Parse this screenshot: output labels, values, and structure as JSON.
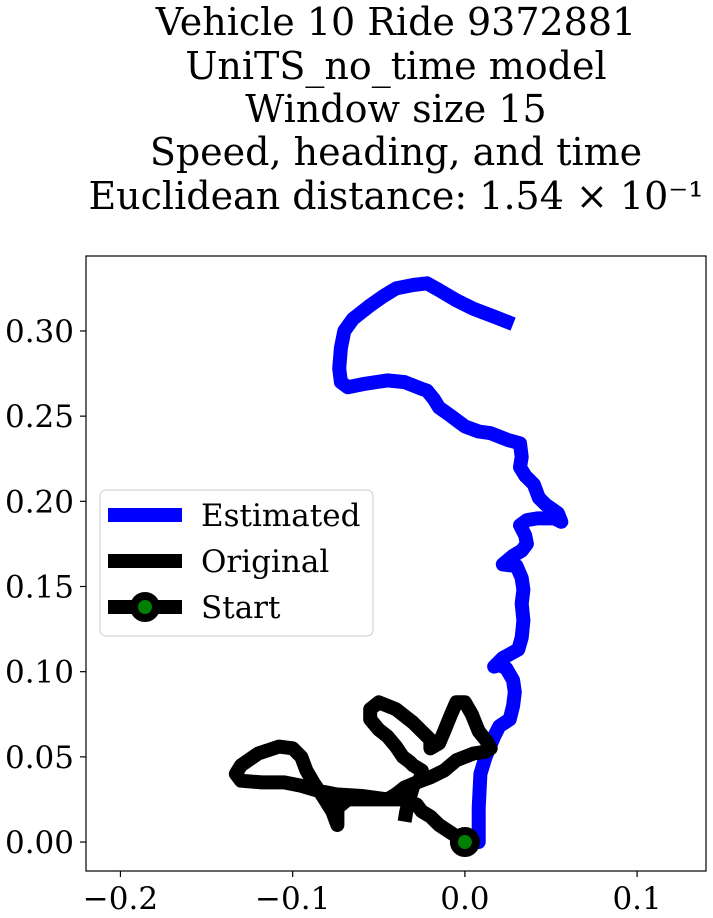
{
  "chart_data": {
    "type": "line",
    "title_lines": [
      "Vehicle 10 Ride 9372881",
      "UniTS_no_time model",
      "Window size 15",
      "Speed, heading, and time",
      "Euclidean distance: 1.54 × 10⁻¹"
    ],
    "xlabel": "",
    "ylabel": "",
    "xlim": [
      -0.22,
      0.14
    ],
    "ylim": [
      -0.017,
      0.344
    ],
    "x_ticks": [
      -0.2,
      -0.1,
      0.0,
      0.1
    ],
    "x_tick_labels": [
      "−0.2",
      "−0.1",
      "0.0",
      "0.1"
    ],
    "y_ticks": [
      0.0,
      0.05,
      0.1,
      0.15,
      0.2,
      0.25,
      0.3
    ],
    "y_tick_labels": [
      "0.00",
      "0.05",
      "0.10",
      "0.15",
      "0.20",
      "0.25",
      "0.30"
    ],
    "grid": false,
    "legend": {
      "placement": "center-left",
      "entries": [
        "Estimated",
        "Original",
        "Start"
      ]
    },
    "colors": {
      "estimated": "#0000ff",
      "original": "#000000",
      "start_fill": "#008000",
      "start_edge": "#000000"
    },
    "series": [
      {
        "name": "Estimated",
        "points": [
          [
            0.0,
            0.0
          ],
          [
            0.008,
            0.0
          ],
          [
            0.008,
            0.02
          ],
          [
            0.009,
            0.04
          ],
          [
            0.012,
            0.05
          ],
          [
            0.017,
            0.062
          ],
          [
            0.02,
            0.068
          ],
          [
            0.026,
            0.072
          ],
          [
            0.028,
            0.08
          ],
          [
            0.029,
            0.088
          ],
          [
            0.028,
            0.095
          ],
          [
            0.024,
            0.102
          ],
          [
            0.02,
            0.104
          ],
          [
            0.017,
            0.103
          ],
          [
            0.022,
            0.108
          ],
          [
            0.031,
            0.113
          ],
          [
            0.033,
            0.12
          ],
          [
            0.034,
            0.13
          ],
          [
            0.033,
            0.14
          ],
          [
            0.034,
            0.148
          ],
          [
            0.033,
            0.155
          ],
          [
            0.03,
            0.162
          ],
          [
            0.022,
            0.163
          ],
          [
            0.028,
            0.168
          ],
          [
            0.033,
            0.171
          ],
          [
            0.036,
            0.175
          ],
          [
            0.035,
            0.18
          ],
          [
            0.032,
            0.186
          ],
          [
            0.036,
            0.189
          ],
          [
            0.042,
            0.19
          ],
          [
            0.048,
            0.19
          ],
          [
            0.052,
            0.19
          ],
          [
            0.056,
            0.188
          ],
          [
            0.054,
            0.193
          ],
          [
            0.047,
            0.198
          ],
          [
            0.043,
            0.202
          ],
          [
            0.04,
            0.21
          ],
          [
            0.035,
            0.215
          ],
          [
            0.032,
            0.22
          ],
          [
            0.033,
            0.226
          ],
          [
            0.032,
            0.234
          ],
          [
            0.025,
            0.236
          ],
          [
            0.015,
            0.24
          ],
          [
            0.008,
            0.241
          ],
          [
            0.0,
            0.244
          ],
          [
            -0.008,
            0.25
          ],
          [
            -0.015,
            0.255
          ],
          [
            -0.018,
            0.26
          ],
          [
            -0.022,
            0.265
          ],
          [
            -0.025,
            0.266
          ],
          [
            -0.03,
            0.268
          ],
          [
            -0.035,
            0.27
          ],
          [
            -0.045,
            0.271
          ],
          [
            -0.058,
            0.269
          ],
          [
            -0.068,
            0.267
          ],
          [
            -0.072,
            0.27
          ],
          [
            -0.073,
            0.278
          ],
          [
            -0.072,
            0.29
          ],
          [
            -0.07,
            0.3
          ],
          [
            -0.065,
            0.307
          ],
          [
            -0.055,
            0.315
          ],
          [
            -0.048,
            0.32
          ],
          [
            -0.04,
            0.325
          ],
          [
            -0.03,
            0.327
          ],
          [
            -0.022,
            0.328
          ],
          [
            -0.015,
            0.324
          ],
          [
            -0.005,
            0.318
          ],
          [
            0.005,
            0.313
          ],
          [
            0.018,
            0.308
          ],
          [
            0.028,
            0.304
          ]
        ]
      },
      {
        "name": "Original",
        "points": [
          [
            0.0,
            0.0
          ],
          [
            -0.006,
            0.004
          ],
          [
            -0.015,
            0.01
          ],
          [
            -0.02,
            0.015
          ],
          [
            -0.025,
            0.018
          ],
          [
            -0.028,
            0.022
          ],
          [
            -0.035,
            0.025
          ],
          [
            -0.045,
            0.025
          ],
          [
            -0.06,
            0.027
          ],
          [
            -0.075,
            0.028
          ],
          [
            -0.085,
            0.03
          ],
          [
            -0.095,
            0.033
          ],
          [
            -0.105,
            0.035
          ],
          [
            -0.118,
            0.035
          ],
          [
            -0.13,
            0.036
          ],
          [
            -0.133,
            0.04
          ],
          [
            -0.13,
            0.045
          ],
          [
            -0.12,
            0.052
          ],
          [
            -0.108,
            0.056
          ],
          [
            -0.1,
            0.055
          ],
          [
            -0.095,
            0.05
          ],
          [
            -0.092,
            0.042
          ],
          [
            -0.088,
            0.035
          ],
          [
            -0.082,
            0.026
          ],
          [
            -0.077,
            0.018
          ],
          [
            -0.074,
            0.01
          ],
          [
            -0.074,
            0.02
          ],
          [
            -0.068,
            0.025
          ],
          [
            -0.055,
            0.025
          ],
          [
            -0.045,
            0.025
          ],
          [
            -0.04,
            0.028
          ],
          [
            -0.035,
            0.032
          ],
          [
            -0.028,
            0.035
          ],
          [
            -0.02,
            0.038
          ],
          [
            -0.012,
            0.042
          ],
          [
            -0.005,
            0.048
          ],
          [
            0.0,
            0.05
          ],
          [
            0.005,
            0.052
          ],
          [
            0.012,
            0.053
          ],
          [
            0.015,
            0.055
          ],
          [
            0.012,
            0.06
          ],
          [
            0.008,
            0.065
          ],
          [
            0.004,
            0.075
          ],
          [
            0.0,
            0.082
          ],
          [
            -0.005,
            0.082
          ],
          [
            -0.008,
            0.075
          ],
          [
            -0.012,
            0.065
          ],
          [
            -0.015,
            0.058
          ],
          [
            -0.02,
            0.055
          ],
          [
            -0.02,
            0.06
          ],
          [
            -0.03,
            0.07
          ],
          [
            -0.04,
            0.078
          ],
          [
            -0.045,
            0.08
          ],
          [
            -0.05,
            0.082
          ],
          [
            -0.055,
            0.078
          ],
          [
            -0.055,
            0.072
          ],
          [
            -0.05,
            0.066
          ],
          [
            -0.045,
            0.062
          ],
          [
            -0.04,
            0.056
          ],
          [
            -0.036,
            0.05
          ],
          [
            -0.032,
            0.047
          ],
          [
            -0.03,
            0.045
          ],
          [
            -0.025,
            0.042
          ],
          [
            -0.026,
            0.037
          ],
          [
            -0.03,
            0.033
          ],
          [
            -0.032,
            0.026
          ],
          [
            -0.034,
            0.018
          ],
          [
            -0.035,
            0.012
          ]
        ]
      }
    ],
    "start_point": [
      0.0,
      0.0
    ]
  }
}
